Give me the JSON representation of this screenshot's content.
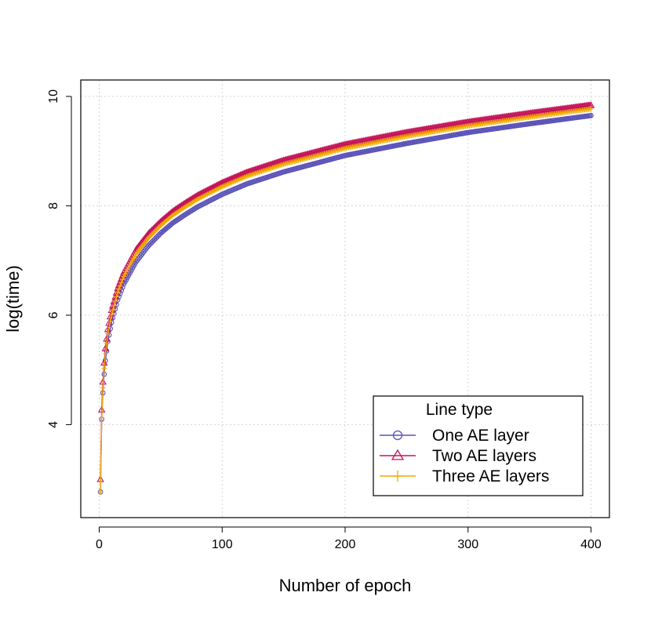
{
  "chart_data": {
    "type": "line",
    "title": "",
    "xlabel": "Number of epoch",
    "ylabel": "log(time)",
    "xlim": [
      -15,
      415
    ],
    "ylim": [
      2.3,
      10.3
    ],
    "xticks": [
      0,
      100,
      200,
      300,
      400
    ],
    "yticks": [
      4,
      6,
      8,
      10
    ],
    "grid": true,
    "legend": {
      "title": "Line type",
      "position": "bottom-right"
    },
    "x_range": [
      1,
      400
    ],
    "series": [
      {
        "name": "One AE layer",
        "color": "#5a52b8",
        "marker": "circle",
        "points": [
          [
            1,
            2.77
          ],
          [
            2,
            4.1
          ],
          [
            3,
            4.58
          ],
          [
            4,
            4.92
          ],
          [
            5,
            5.17
          ],
          [
            7,
            5.52
          ],
          [
            10,
            5.87
          ],
          [
            15,
            6.28
          ],
          [
            20,
            6.57
          ],
          [
            30,
            6.98
          ],
          [
            40,
            7.27
          ],
          [
            50,
            7.5
          ],
          [
            60,
            7.69
          ],
          [
            70,
            7.84
          ],
          [
            80,
            7.98
          ],
          [
            100,
            8.21
          ],
          [
            120,
            8.4
          ],
          [
            150,
            8.62
          ],
          [
            200,
            8.92
          ],
          [
            250,
            9.14
          ],
          [
            300,
            9.34
          ],
          [
            350,
            9.5
          ],
          [
            400,
            9.65
          ]
        ]
      },
      {
        "name": "Two AE layers",
        "color": "#c4145a",
        "marker": "triangle",
        "points": [
          [
            1,
            3.0
          ],
          [
            2,
            4.27
          ],
          [
            3,
            4.78
          ],
          [
            4,
            5.13
          ],
          [
            5,
            5.39
          ],
          [
            7,
            5.74
          ],
          [
            10,
            6.09
          ],
          [
            15,
            6.49
          ],
          [
            20,
            6.78
          ],
          [
            30,
            7.2
          ],
          [
            40,
            7.49
          ],
          [
            50,
            7.71
          ],
          [
            60,
            7.9
          ],
          [
            70,
            8.05
          ],
          [
            80,
            8.19
          ],
          [
            100,
            8.42
          ],
          [
            120,
            8.61
          ],
          [
            150,
            8.83
          ],
          [
            200,
            9.12
          ],
          [
            250,
            9.34
          ],
          [
            300,
            9.53
          ],
          [
            350,
            9.69
          ],
          [
            400,
            9.84
          ]
        ]
      },
      {
        "name": "Three AE layers",
        "color": "#f2a900",
        "marker": "plus",
        "points": [
          [
            1,
            2.77
          ],
          [
            2,
            4.13
          ],
          [
            3,
            4.67
          ],
          [
            4,
            5.03
          ],
          [
            5,
            5.3
          ],
          [
            7,
            5.66
          ],
          [
            10,
            6.01
          ],
          [
            15,
            6.42
          ],
          [
            20,
            6.71
          ],
          [
            30,
            7.12
          ],
          [
            40,
            7.41
          ],
          [
            50,
            7.64
          ],
          [
            60,
            7.83
          ],
          [
            70,
            7.98
          ],
          [
            80,
            8.12
          ],
          [
            100,
            8.35
          ],
          [
            120,
            8.54
          ],
          [
            150,
            8.76
          ],
          [
            200,
            9.05
          ],
          [
            250,
            9.27
          ],
          [
            300,
            9.46
          ],
          [
            350,
            9.62
          ],
          [
            400,
            9.77
          ]
        ]
      }
    ]
  }
}
